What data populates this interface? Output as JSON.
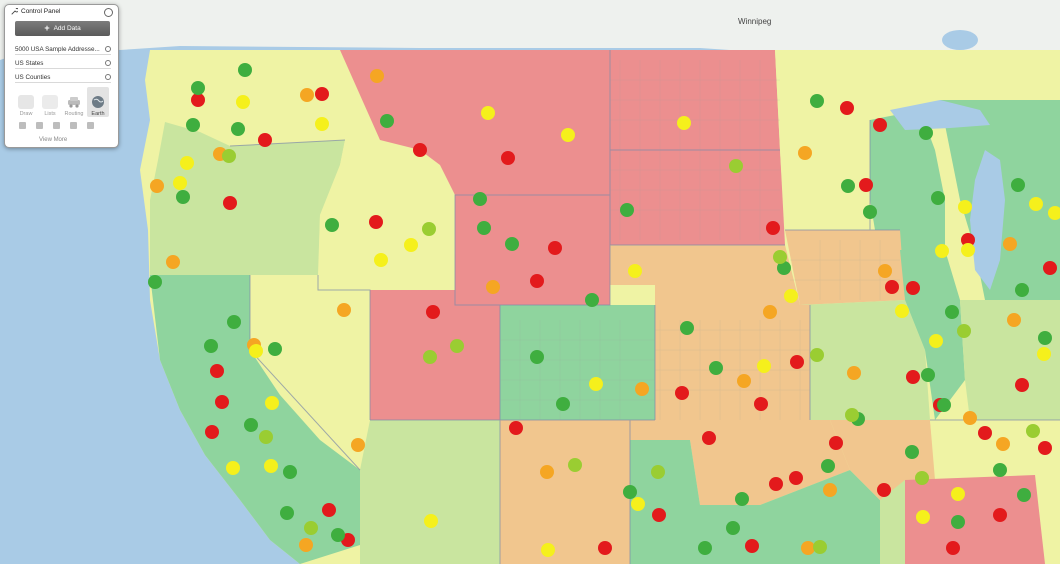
{
  "control_panel": {
    "title": "Control Panel",
    "add_data_label": "Add Data",
    "layers": [
      {
        "label": "5000 USA Sample Addresse..."
      },
      {
        "label": "US States"
      },
      {
        "label": "US Counties"
      }
    ],
    "tools": [
      {
        "label": "Draw",
        "icon": "draw-icon",
        "active": false
      },
      {
        "label": "Lists",
        "icon": "lists-icon",
        "active": false
      },
      {
        "label": "Routing",
        "icon": "car-icon",
        "active": false
      },
      {
        "label": "Earth",
        "icon": "globe-icon",
        "active": true
      }
    ],
    "view_more_label": "View More"
  },
  "map": {
    "city_label": "Winnipeg",
    "colors": {
      "water": "#a9cbe6",
      "land": "#eef1ee",
      "red_region": "#ec8f8f",
      "green_region": "#8fd49e",
      "yellow_region": "#f2f09c",
      "orange_region": "#f1c68e",
      "lightgreen_region": "#c6e4a4",
      "marker_red": "#e31a1c",
      "marker_orange": "#f5a623",
      "marker_yellow": "#f5f01c",
      "marker_green": "#3fae3f",
      "marker_lightgreen": "#9acd32"
    }
  }
}
